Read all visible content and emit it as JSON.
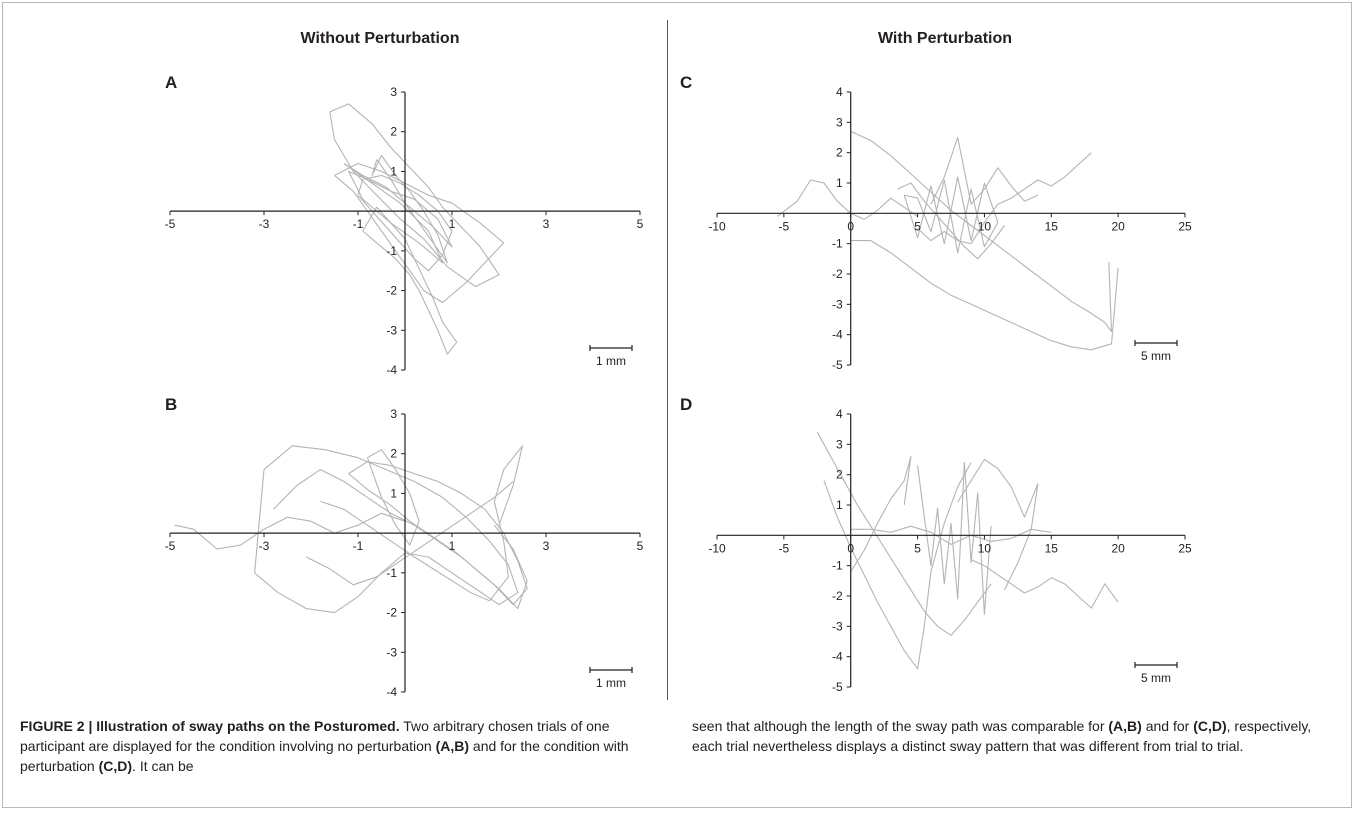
{
  "figure": {
    "left_title": "Without Perturbation",
    "right_title": "With Perturbation"
  },
  "caption": {
    "figure_label": "FIGURE 2 | Illustration of sway paths on the Posturomed.",
    "p1": " Two arbitrary chosen trials of one participant are displayed for the condition involving no perturbation ",
    "ab1": "(A,B)",
    "p2": " and for the condition with perturbation ",
    "cd1": "(C,D)",
    "p3": ". It can be seen that although the length of the sway path was comparable for ",
    "ab2": "(A,B)",
    "p4": " and for ",
    "cd2": "(C,D)",
    "p5": ", respectively, each trial nevertheless displays a distinct sway pattern that was different from trial to trial."
  },
  "chart_data": [
    {
      "panel": "A",
      "type": "line",
      "xlim": [
        -5,
        5
      ],
      "ylim": [
        -4,
        3
      ],
      "xticks": [
        -5,
        -3,
        -1,
        1,
        3,
        5
      ],
      "yticks": [
        3,
        2,
        1,
        0,
        -1,
        -2,
        -3,
        -4
      ],
      "scale_bar": "1 mm",
      "line_color": "#b4b4b4",
      "grid": false,
      "series": [
        {
          "x": [
            -1.3,
            -0.9,
            -0.4,
            0.1,
            0.6,
            1.0,
            0.7,
            0.2,
            -0.3,
            -0.8,
            -1.2,
            -0.9,
            -0.3,
            0.3,
            0.8,
            0.5,
            -0.1,
            -0.7,
            -1.3
          ],
          "y": [
            1.2,
            0.9,
            0.6,
            0.1,
            -0.4,
            -0.9,
            -0.2,
            0.3,
            0.5,
            0.8,
            1.0,
            0.3,
            -0.3,
            -0.8,
            -1.3,
            -0.5,
            0.2,
            0.7,
            1.2
          ]
        },
        {
          "x": [
            -1.6,
            -1.2,
            -0.7,
            -0.3,
            0.1,
            0.5,
            0.8,
            1.2,
            1.6,
            2.0,
            1.5,
            0.9,
            0.4,
            -0.1,
            -0.6,
            -1.1,
            -1.5,
            -1.6
          ],
          "y": [
            2.5,
            2.7,
            2.2,
            1.6,
            1.1,
            0.6,
            0.1,
            -0.4,
            -0.9,
            -1.6,
            -1.9,
            -1.4,
            -0.7,
            -0.2,
            0.4,
            1.0,
            1.8,
            2.5
          ]
        },
        {
          "x": [
            -0.6,
            -0.3,
            0.0,
            0.3,
            0.6,
            0.9,
            0.7,
            0.4,
            0.1,
            -0.2,
            -0.5,
            -0.7,
            -0.6
          ],
          "y": [
            1.3,
            0.8,
            0.2,
            -0.3,
            -0.8,
            -1.3,
            -0.6,
            0.0,
            0.5,
            0.9,
            1.4,
            0.9,
            1.3
          ]
        },
        {
          "x": [
            -0.9,
            -0.5,
            -0.2,
            0.1,
            0.3,
            0.5,
            0.7,
            0.9,
            1.1,
            0.8,
            0.6,
            0.4,
            0.2,
            0.0,
            -0.3,
            -0.6,
            -0.9
          ],
          "y": [
            -0.5,
            -0.9,
            -1.2,
            -1.6,
            -2.0,
            -2.5,
            -3.0,
            -3.6,
            -3.3,
            -2.8,
            -2.2,
            -1.7,
            -1.2,
            -0.7,
            -0.3,
            0.1,
            -0.5
          ]
        },
        {
          "x": [
            -1.5,
            -1.1,
            -0.8,
            -0.5,
            -0.2,
            0.1,
            0.4,
            0.8,
            1.3,
            1.7,
            2.1,
            1.6,
            1.0,
            0.5,
            0.0,
            -0.5,
            -1.0,
            -1.5
          ],
          "y": [
            0.9,
            0.5,
            0.0,
            -0.5,
            -1.0,
            -1.5,
            -2.0,
            -2.3,
            -1.8,
            -1.3,
            -0.8,
            -0.3,
            0.2,
            0.4,
            0.7,
            1.0,
            1.2,
            0.9
          ]
        },
        {
          "x": [
            -1.0,
            -0.7,
            -0.4,
            -0.1,
            0.2,
            0.5,
            0.8,
            1.0,
            0.7,
            0.3,
            -0.1,
            -0.5,
            -0.9,
            -1.0
          ],
          "y": [
            0.4,
            0.0,
            -0.4,
            -0.8,
            -1.2,
            -1.5,
            -1.1,
            -0.5,
            0.0,
            0.4,
            0.7,
            0.9,
            0.8,
            0.4
          ]
        }
      ]
    },
    {
      "panel": "B",
      "type": "line",
      "xlim": [
        -5,
        5
      ],
      "ylim": [
        -4,
        3
      ],
      "xticks": [
        -5,
        -3,
        -1,
        1,
        3,
        5
      ],
      "yticks": [
        3,
        2,
        1,
        0,
        -1,
        -2,
        -3,
        -4
      ],
      "scale_bar": "1 mm",
      "line_color": "#b4b4b4",
      "grid": false,
      "series": [
        {
          "x": [
            -4.9,
            -4.5,
            -4.0,
            -3.5,
            -3.0,
            -2.5,
            -2.0,
            -1.5,
            -1.0,
            -0.5,
            0.0
          ],
          "y": [
            0.2,
            0.1,
            -0.4,
            -0.3,
            0.1,
            0.4,
            0.3,
            0.0,
            0.2,
            0.5,
            0.3
          ]
        },
        {
          "x": [
            -3.2,
            -2.7,
            -2.1,
            -1.5,
            -1.0,
            -0.5,
            0.0,
            0.5,
            1.0,
            1.5,
            2.0,
            2.4,
            2.2,
            1.8,
            1.3,
            0.8,
            0.2,
            -0.4,
            -1.0,
            -1.7,
            -2.4,
            -3.0,
            -3.2
          ],
          "y": [
            -1.0,
            -1.5,
            -1.9,
            -2.0,
            -1.6,
            -1.0,
            -0.5,
            -0.6,
            -1.0,
            -1.4,
            -1.8,
            -1.5,
            -0.8,
            -0.2,
            0.4,
            0.9,
            1.3,
            1.6,
            1.9,
            2.1,
            2.2,
            1.6,
            -1.0
          ]
        },
        {
          "x": [
            -1.2,
            -0.8,
            -0.3,
            0.1,
            0.6,
            1.1,
            1.5,
            1.9,
            2.3,
            2.6,
            2.4,
            2.1,
            1.7,
            1.2,
            0.7,
            0.2,
            -0.3,
            -0.8,
            -1.2
          ],
          "y": [
            1.5,
            1.1,
            0.7,
            0.3,
            -0.1,
            -0.5,
            -0.9,
            -1.3,
            -1.8,
            -1.4,
            -0.7,
            0.0,
            0.6,
            1.0,
            1.3,
            1.5,
            1.7,
            1.8,
            1.5
          ]
        },
        {
          "x": [
            -1.8,
            -1.3,
            -0.8,
            -0.3,
            0.2,
            0.6,
            1.0,
            1.4,
            1.8,
            2.2,
            2.1,
            1.9,
            2.1,
            2.5,
            2.3,
            2.0
          ],
          "y": [
            0.8,
            0.6,
            0.2,
            -0.2,
            -0.6,
            -0.9,
            -1.2,
            -1.5,
            -1.7,
            -1.1,
            -0.2,
            0.8,
            1.6,
            2.2,
            1.2,
            0.2
          ]
        },
        {
          "x": [
            -2.8,
            -2.3,
            -1.8,
            -1.3,
            -0.8,
            -0.3,
            0.2,
            0.7,
            1.2,
            1.6,
            2.0,
            2.4,
            2.6,
            2.3,
            1.9
          ],
          "y": [
            0.6,
            1.2,
            1.6,
            1.3,
            0.9,
            0.5,
            0.2,
            -0.2,
            -0.6,
            -1.0,
            -1.4,
            -1.9,
            -1.2,
            -0.4,
            0.2
          ]
        },
        {
          "x": [
            -2.1,
            -1.6,
            -1.1,
            -0.6,
            -0.1,
            0.4,
            0.9,
            1.4,
            1.9,
            2.3
          ],
          "y": [
            -0.6,
            -0.9,
            -1.3,
            -1.1,
            -0.7,
            -0.3,
            0.1,
            0.5,
            0.9,
            1.3
          ]
        },
        {
          "x": [
            -0.8,
            -0.5,
            -0.2,
            0.1,
            0.3,
            0.1,
            -0.2,
            -0.5,
            -0.8
          ],
          "y": [
            1.9,
            2.1,
            1.6,
            1.0,
            0.3,
            -0.3,
            0.2,
            0.9,
            1.9
          ]
        }
      ]
    },
    {
      "panel": "C",
      "type": "line",
      "xlim": [
        -10,
        25
      ],
      "ylim": [
        -5,
        4
      ],
      "xticks": [
        -10,
        -5,
        0,
        5,
        10,
        15,
        20,
        25
      ],
      "yticks": [
        4,
        3,
        2,
        1,
        0,
        -1,
        -2,
        -3,
        -4,
        -5
      ],
      "scale_bar": "5 mm",
      "line_color": "#b4b4b4",
      "grid": false,
      "series": [
        {
          "x": [
            -5.5,
            -4.0,
            -3.0,
            -2.0,
            -1.0,
            0.0,
            1.0,
            2.0,
            3.0,
            4.0,
            5.0
          ],
          "y": [
            -0.1,
            0.4,
            1.1,
            1.0,
            0.4,
            0.0,
            -0.2,
            0.1,
            0.5,
            0.2,
            -0.1
          ]
        },
        {
          "x": [
            0.0,
            1.5,
            3.0,
            4.5,
            6.0,
            7.5,
            9.0,
            10.5,
            12.0,
            13.5,
            15.0,
            16.5,
            18.0,
            19.0,
            19.5,
            19.3
          ],
          "y": [
            2.7,
            2.4,
            1.9,
            1.3,
            0.7,
            0.1,
            -0.4,
            -0.9,
            -1.4,
            -1.9,
            -2.4,
            -2.9,
            -3.3,
            -3.6,
            -3.9,
            -1.6
          ]
        },
        {
          "x": [
            0.0,
            1.5,
            3.0,
            4.5,
            6.0,
            7.5,
            9.0,
            10.5,
            12.0,
            13.5,
            15.0,
            16.5,
            18.0,
            19.5,
            20.0
          ],
          "y": [
            -0.9,
            -0.9,
            -1.3,
            -1.8,
            -2.3,
            -2.7,
            -3.0,
            -3.3,
            -3.6,
            -3.9,
            -4.2,
            -4.4,
            -4.5,
            -4.3,
            -1.8
          ]
        },
        {
          "x": [
            4.0,
            5.0,
            6.0,
            7.0,
            8.0,
            9.0,
            10.0,
            11.0,
            10.0,
            9.0,
            8.0,
            7.0,
            6.0,
            5.0,
            4.0
          ],
          "y": [
            0.6,
            -0.8,
            0.9,
            -1.0,
            1.2,
            -0.9,
            1.0,
            -0.3,
            -1.1,
            0.8,
            -1.3,
            1.1,
            -0.6,
            0.5,
            0.6
          ]
        },
        {
          "x": [
            5.0,
            6.0,
            7.0,
            8.0,
            9.0,
            10.0,
            11.0,
            12.0,
            13.0,
            14.0,
            15.0,
            16.0,
            17.0,
            18.0
          ],
          "y": [
            -0.5,
            -0.9,
            -0.6,
            -0.9,
            -1.0,
            -0.3,
            0.3,
            0.5,
            0.8,
            1.1,
            0.9,
            1.2,
            1.6,
            2.0
          ]
        },
        {
          "x": [
            6.0,
            7.0,
            8.0,
            8.5,
            9.0,
            10.0,
            11.0,
            12.0,
            13.0,
            14.0
          ],
          "y": [
            0.3,
            1.2,
            2.5,
            1.4,
            0.3,
            0.8,
            1.5,
            0.9,
            0.4,
            0.6
          ]
        },
        {
          "x": [
            3.5,
            4.5,
            5.5,
            6.5,
            7.5,
            8.5,
            9.5,
            10.5,
            11.5
          ],
          "y": [
            0.8,
            1.0,
            0.4,
            -0.1,
            -0.6,
            -1.1,
            -1.5,
            -1.0,
            -0.4
          ]
        }
      ]
    },
    {
      "panel": "D",
      "type": "line",
      "xlim": [
        -10,
        25
      ],
      "ylim": [
        -5,
        4
      ],
      "xticks": [
        -10,
        -5,
        0,
        5,
        10,
        15,
        20,
        25
      ],
      "yticks": [
        4,
        3,
        2,
        1,
        0,
        -1,
        -2,
        -3,
        -4,
        -5
      ],
      "scale_bar": "5 mm",
      "line_color": "#b4b4b4",
      "grid": false,
      "series": [
        {
          "x": [
            -2.5,
            -1.5,
            -0.5,
            0.5,
            1.5,
            2.5,
            3.5,
            4.5,
            5.5,
            6.5,
            7.5,
            8.5,
            9.5,
            10.5
          ],
          "y": [
            3.4,
            2.6,
            1.8,
            1.0,
            0.3,
            -0.4,
            -1.1,
            -1.8,
            -2.5,
            -3.0,
            -3.3,
            -2.8,
            -2.2,
            -1.6
          ]
        },
        {
          "x": [
            -2.0,
            -1.0,
            0.0,
            1.0,
            2.0,
            3.0,
            4.0,
            5.0,
            5.5,
            6.0,
            7.0,
            8.0,
            9.0
          ],
          "y": [
            1.8,
            0.6,
            -0.4,
            -1.3,
            -2.2,
            -3.0,
            -3.8,
            -4.4,
            -3.0,
            -1.2,
            0.4,
            1.6,
            2.4
          ]
        },
        {
          "x": [
            5.0,
            5.5,
            6.0,
            6.5,
            7.0,
            7.5,
            8.0,
            8.5,
            9.0,
            9.5,
            10.0,
            10.5
          ],
          "y": [
            2.3,
            0.6,
            -1.0,
            0.9,
            -1.6,
            0.4,
            -2.1,
            2.4,
            -0.9,
            1.4,
            -2.6,
            0.3
          ]
        },
        {
          "x": [
            0.0,
            1.5,
            3.0,
            4.5,
            6.0,
            7.5,
            9.0,
            10.5,
            12.0,
            13.5,
            15.0
          ],
          "y": [
            0.2,
            0.2,
            0.1,
            0.3,
            0.1,
            -0.3,
            0.0,
            -0.2,
            -0.1,
            0.2,
            0.1
          ]
        },
        {
          "x": [
            9.0,
            10.0,
            11.0,
            12.0,
            13.0,
            14.0,
            15.0,
            16.0,
            17.0,
            18.0,
            19.0,
            20.0
          ],
          "y": [
            -0.8,
            -1.0,
            -1.3,
            -1.6,
            -1.9,
            -1.7,
            -1.4,
            -1.6,
            -2.0,
            -2.4,
            -1.6,
            -2.2
          ]
        },
        {
          "x": [
            8.0,
            9.0,
            10.0,
            11.0,
            12.0,
            13.0,
            14.0,
            13.5,
            12.5,
            11.5
          ],
          "y": [
            1.1,
            1.8,
            2.5,
            2.2,
            1.6,
            0.6,
            1.7,
            0.2,
            -0.9,
            -1.8
          ]
        },
        {
          "x": [
            0.0,
            1.0,
            2.0,
            3.0,
            4.0,
            4.5,
            4.0
          ],
          "y": [
            -1.2,
            -0.5,
            0.4,
            1.2,
            1.8,
            2.6,
            1.0
          ]
        }
      ]
    }
  ]
}
